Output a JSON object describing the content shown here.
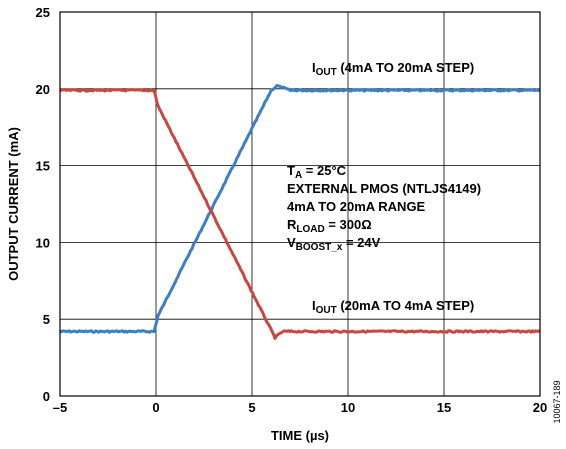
{
  "chart_data": {
    "type": "line",
    "title": "",
    "xlabel": "TIME (µs)",
    "ylabel": "OUTPUT CURRENT (mA)",
    "xlim": [
      -5,
      20
    ],
    "ylim": [
      0,
      25
    ],
    "x_ticks": [
      "–5",
      "0",
      "5",
      "10",
      "15",
      "20"
    ],
    "y_ticks": [
      "0",
      "5",
      "10",
      "15",
      "20",
      "25"
    ],
    "grid": true,
    "legend": "none",
    "colors": {
      "series1": "#3b7fc4",
      "series2": "#c9473f"
    },
    "series": [
      {
        "name": "IOUT (4mA TO 20mA STEP)",
        "x": [
          -5,
          -0.1,
          0.1,
          6.0,
          6.3,
          7.0,
          20
        ],
        "y": [
          4.2,
          4.2,
          5.2,
          19.9,
          20.2,
          19.9,
          19.9
        ]
      },
      {
        "name": "IOUT (20mA TO 4mA STEP)",
        "x": [
          -5,
          -0.1,
          0.1,
          6.2,
          6.6,
          7.5,
          20
        ],
        "y": [
          19.9,
          19.9,
          18.9,
          3.8,
          4.2,
          4.2,
          4.2
        ]
      }
    ],
    "labels": {
      "series1": {
        "main": "I",
        "sub": "OUT",
        "rest": " (4mA TO 20mA STEP)"
      },
      "series2": {
        "main": "I",
        "sub": "OUT",
        "rest": " (20mA TO 4mA STEP)"
      }
    },
    "conditions": [
      {
        "main": "T",
        "sub": "A",
        "rest": " = 25°C"
      },
      {
        "main": "EXTERNAL PMOS (NTLJS4149)",
        "sub": "",
        "rest": ""
      },
      {
        "main": "4mA TO 20mA RANGE",
        "sub": "",
        "rest": ""
      },
      {
        "main": "R",
        "sub": "LOAD",
        "rest": " = 300Ω"
      },
      {
        "main": "V",
        "sub": "BOOST_x",
        "rest": " = 24V"
      }
    ],
    "figure_id": "10067-189"
  }
}
